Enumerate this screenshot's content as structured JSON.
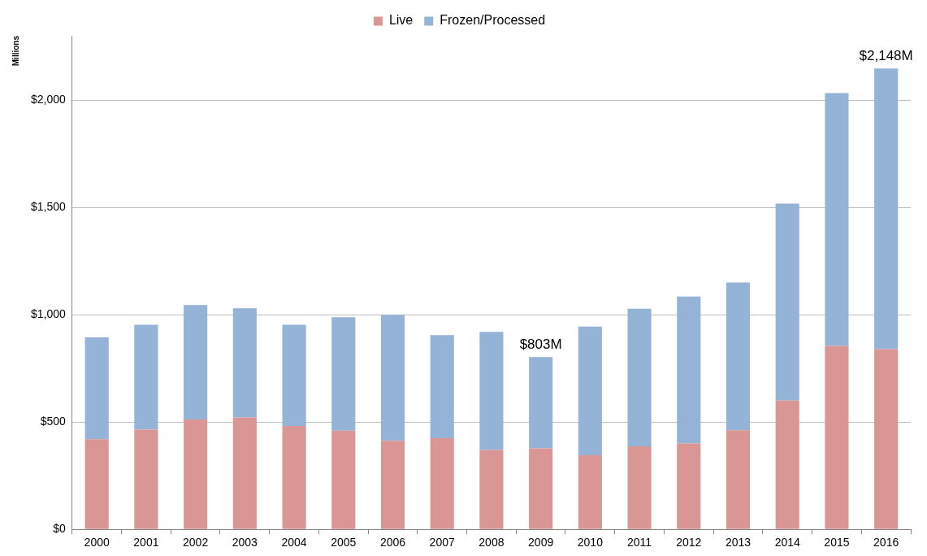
{
  "chart_data": {
    "type": "bar",
    "stacked": true,
    "grid": true,
    "legend": "top",
    "y_label": "Millions",
    "categories": [
      "2000",
      "2001",
      "2002",
      "2003",
      "2004",
      "2005",
      "2006",
      "2007",
      "2008",
      "2009",
      "2010",
      "2011",
      "2012",
      "2013",
      "2014",
      "2015",
      "2016"
    ],
    "series": [
      {
        "name": "Live",
        "color": "#d99694",
        "values": [
          420,
          465,
          512,
          522,
          482,
          460,
          413,
          425,
          370,
          378,
          345,
          387,
          400,
          462,
          600,
          855,
          840
        ]
      },
      {
        "name": "Frozen/Processed",
        "color": "#95b3d7",
        "values": [
          475,
          488,
          533,
          508,
          471,
          528,
          587,
          480,
          550,
          425,
          600,
          641,
          685,
          688,
          918,
          1178,
          1308
        ]
      }
    ],
    "ylim": [
      0,
      2300
    ],
    "yticks": [
      {
        "value": 0,
        "label": "$0"
      },
      {
        "value": 500,
        "label": "$500"
      },
      {
        "value": 1000,
        "label": "$1,000"
      },
      {
        "value": 1500,
        "label": "$1,500"
      },
      {
        "value": 2000,
        "label": "$2,000"
      }
    ],
    "annotations": [
      {
        "text": "$803M",
        "category": "2009",
        "value": 803
      },
      {
        "text": "$2,148M",
        "category": "2016",
        "value": 2148
      }
    ]
  }
}
